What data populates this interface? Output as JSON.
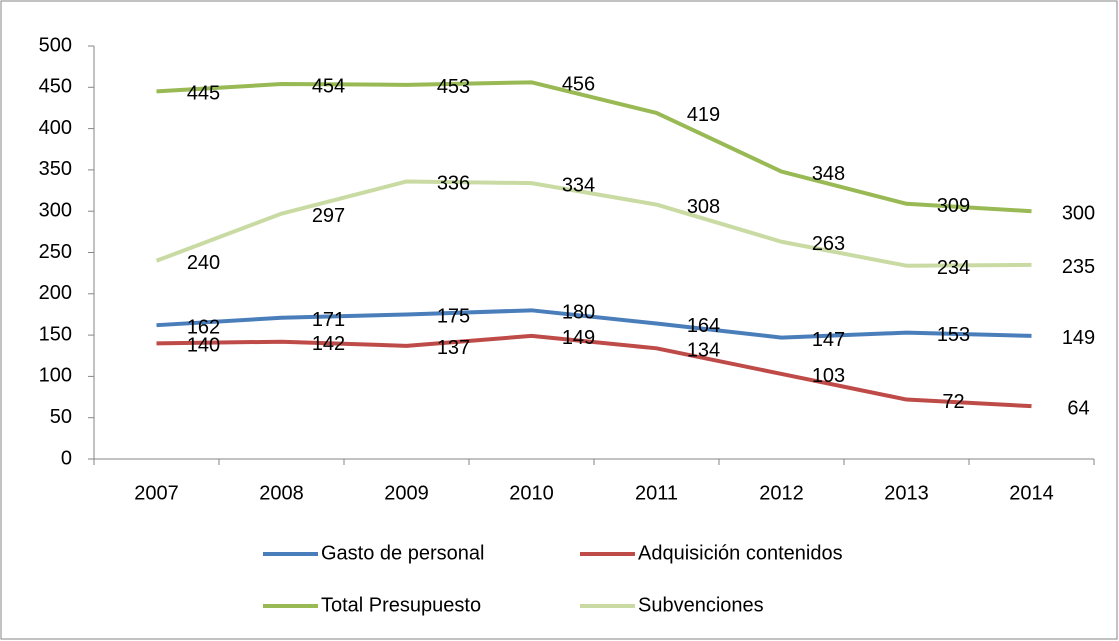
{
  "chart_data": {
    "type": "line",
    "categories": [
      "2007",
      "2008",
      "2009",
      "2010",
      "2011",
      "2012",
      "2013",
      "2014"
    ],
    "series": [
      {
        "name": "Gasto de personal",
        "color": "#4a7ebb",
        "values": [
          162,
          171,
          175,
          180,
          164,
          147,
          153,
          149
        ]
      },
      {
        "name": "Adquisición contenidos",
        "color": "#be4b48",
        "values": [
          140,
          142,
          137,
          149,
          134,
          103,
          72,
          64
        ]
      },
      {
        "name": "Total Presupuesto",
        "color": "#98b954",
        "values": [
          445,
          454,
          453,
          456,
          419,
          348,
          309,
          300
        ]
      },
      {
        "name": "Subvenciones",
        "color": "#c9dba3",
        "values": [
          240,
          297,
          336,
          334,
          308,
          263,
          234,
          235
        ]
      }
    ],
    "ylim": [
      0,
      500
    ],
    "yticks": [
      0,
      50,
      100,
      150,
      200,
      250,
      300,
      350,
      400,
      450,
      500
    ],
    "grid": false,
    "legend": "bottom"
  }
}
